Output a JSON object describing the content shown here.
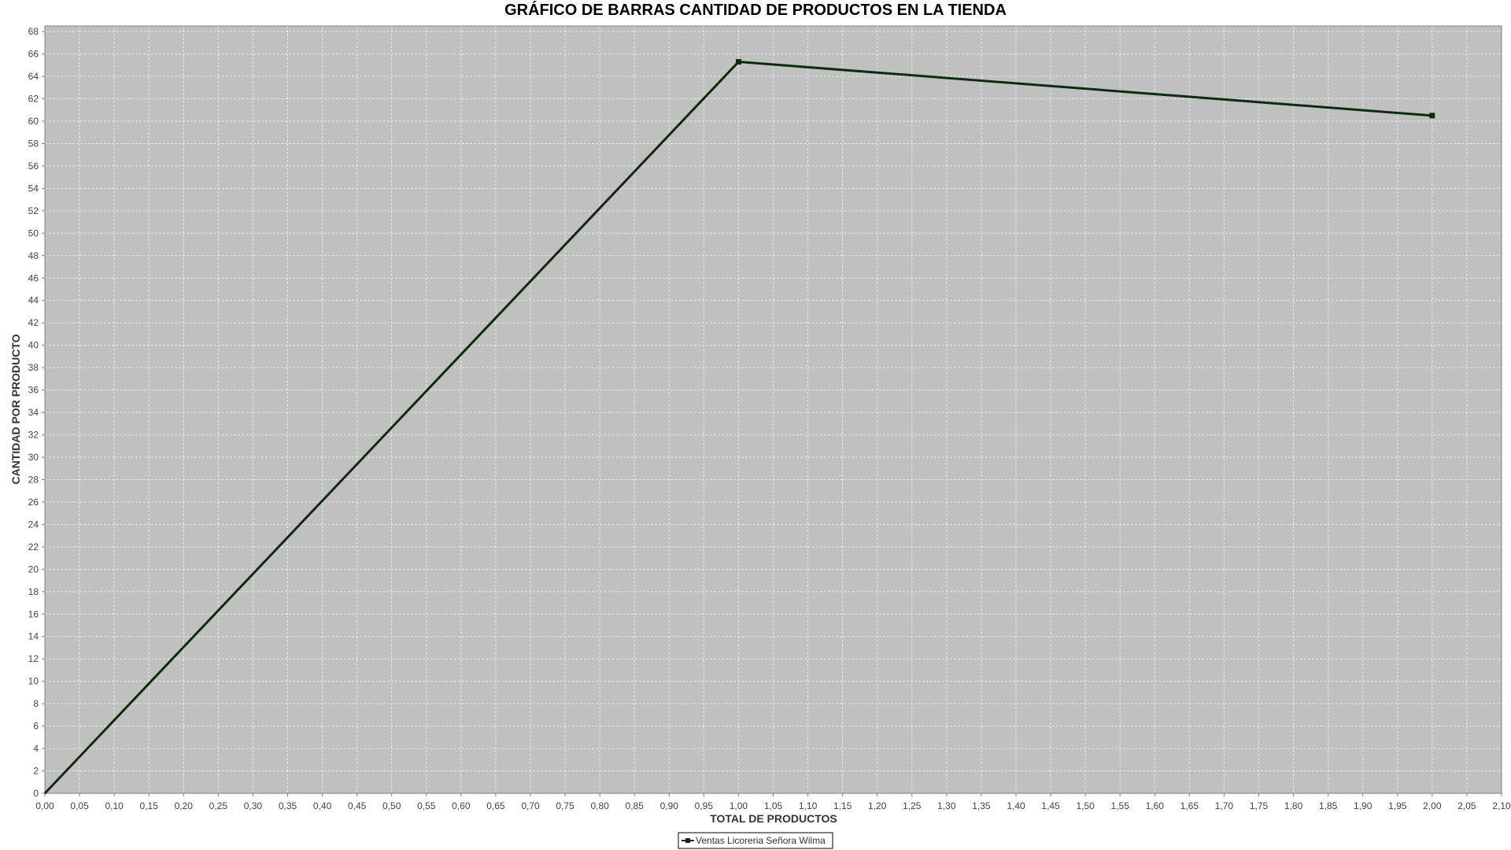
{
  "chart_data": {
    "type": "line",
    "title": "GRÁFICO DE BARRAS CANTIDAD DE PRODUCTOS EN LA TIENDA",
    "xlabel": "TOTAL DE PRODUCTOS",
    "ylabel": "CANTIDAD POR PRODUCTO",
    "xlim": [
      0,
      2.1
    ],
    "ylim": [
      0,
      68.5
    ],
    "x_tick_step": 0.05,
    "y_tick_step": 2,
    "decimal_separator": ",",
    "grid": true,
    "legend_position": "bottom-center",
    "series": [
      {
        "name": "Ventas Licoreria Señora Wilma",
        "color": "#0f2b0f",
        "x": [
          0,
          1,
          2
        ],
        "y": [
          0,
          65.3,
          60.5
        ]
      }
    ]
  },
  "colors": {
    "plot_background": "#c0c0c0",
    "gridline": "#e8e8e8",
    "series_line": "#0f2b0f"
  }
}
